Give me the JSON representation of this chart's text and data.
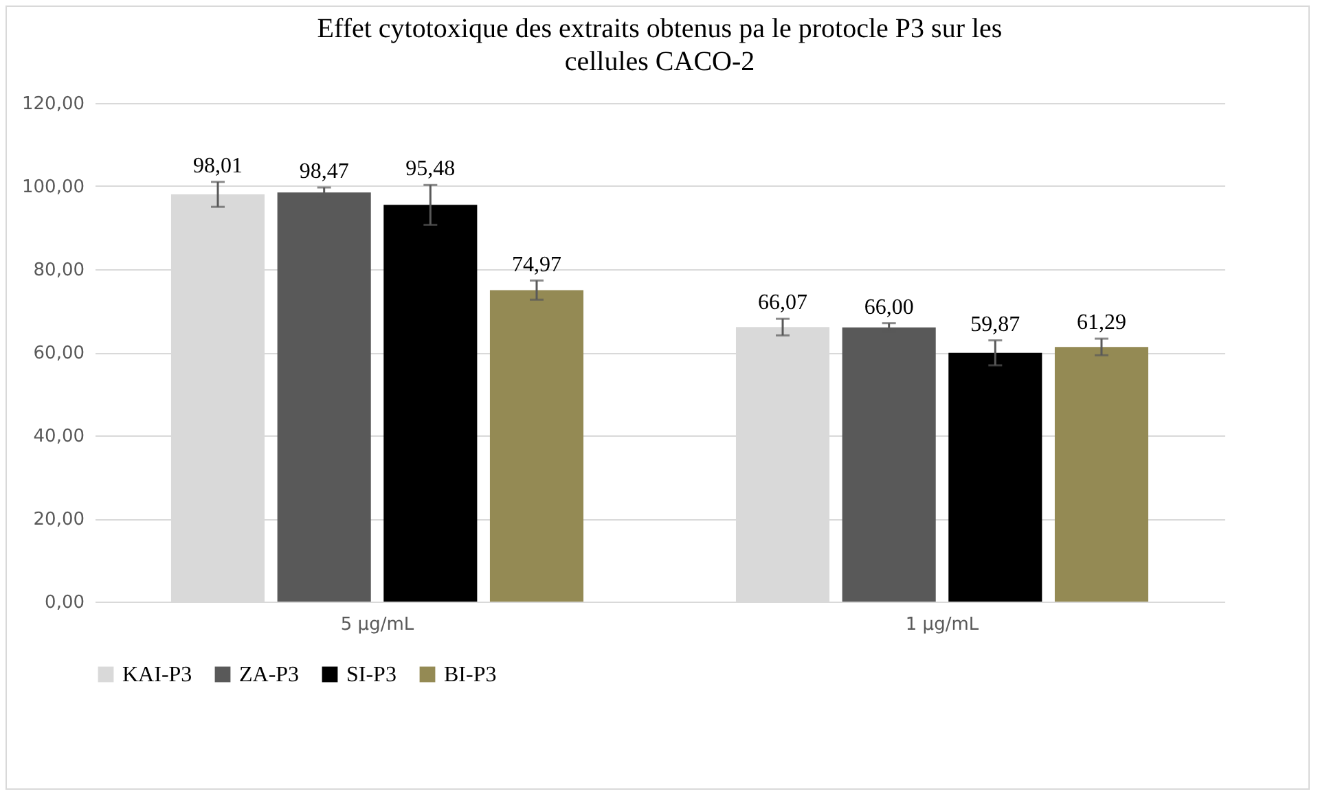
{
  "chart_data": {
    "type": "bar",
    "title": "Effet cytotoxique des extraits obtenus pa le protocle P3 sur les cellules CACO-2",
    "categories": [
      "5 µg/mL",
      "1 µg/mL"
    ],
    "series": [
      {
        "name": "KAI-P3",
        "color": "#d9d9d9",
        "values": [
          98.01,
          66.07
        ],
        "errors": [
          3.0,
          2.0
        ],
        "value_labels": [
          "98,01",
          "66,07"
        ]
      },
      {
        "name": "ZA-P3",
        "color": "#595959",
        "values": [
          98.47,
          66.0
        ],
        "errors": [
          1.2,
          1.0
        ],
        "value_labels": [
          "98,47",
          "66,00"
        ]
      },
      {
        "name": "SI-P3",
        "color": "#000000",
        "values": [
          95.48,
          59.87
        ],
        "errors": [
          4.8,
          3.0
        ],
        "value_labels": [
          "95,48",
          "59,87"
        ]
      },
      {
        "name": "BI-P3",
        "color": "#948a54",
        "values": [
          74.97,
          61.29
        ],
        "errors": [
          2.3,
          2.0
        ],
        "value_labels": [
          "74,97",
          "61,29"
        ]
      }
    ],
    "ylim": [
      0,
      120
    ],
    "yticks": [
      {
        "value": 0,
        "label": "0,00"
      },
      {
        "value": 20,
        "label": "20,00"
      },
      {
        "value": 40,
        "label": "40,00"
      },
      {
        "value": 60,
        "label": "60,00"
      },
      {
        "value": 80,
        "label": "80,00"
      },
      {
        "value": 100,
        "label": "100,00"
      },
      {
        "value": 120,
        "label": "120,00"
      }
    ],
    "grid": "y",
    "legend": "bottom"
  }
}
